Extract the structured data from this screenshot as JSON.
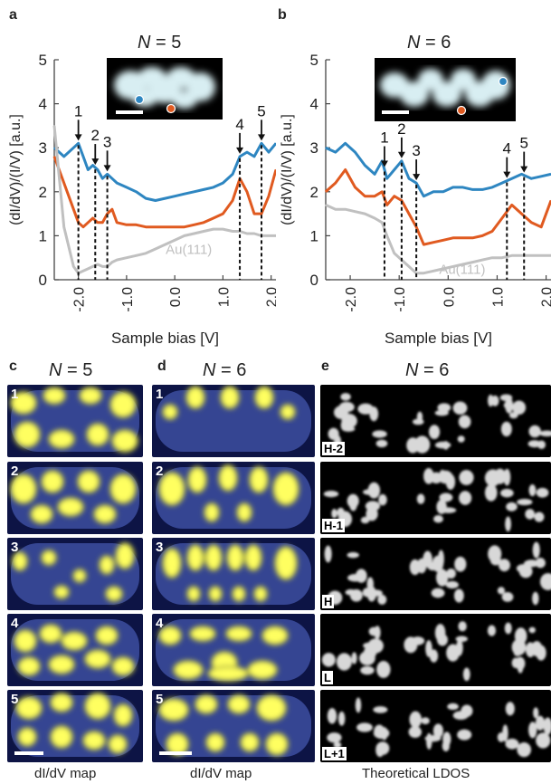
{
  "panels": {
    "a": {
      "letter": "a",
      "title_n": "N",
      "title_rest": " = 5"
    },
    "b": {
      "letter": "b",
      "title_n": "N",
      "title_rest": " = 6"
    },
    "c": {
      "letter": "c",
      "title_n": "N",
      "title_rest": " = 5",
      "caption": "dI/dV map"
    },
    "d": {
      "letter": "d",
      "title_n": "N",
      "title_rest": " = 6",
      "caption": "dI/dV map"
    },
    "e": {
      "letter": "e",
      "title_n": "N",
      "title_rest": " = 6",
      "caption": "Theoretical LDOS"
    }
  },
  "axes": {
    "ylabel": "(dI/dV)/(I/V) [a.u.]",
    "xlabel": "Sample bias [V]",
    "yticks": [
      "0",
      "1",
      "2",
      "3",
      "4",
      "5"
    ],
    "xticks": [
      "-2.0",
      "-1.0",
      "0.0",
      "1.0",
      "2.0"
    ],
    "au_label": "Au(111)"
  },
  "colors": {
    "blue": "#2e86c1",
    "orange": "#e05a20",
    "gray": "#c0c0c0"
  },
  "map_numbers": [
    "1",
    "2",
    "3",
    "4",
    "5"
  ],
  "orbital_tags": [
    "H-2",
    "H-1",
    "H",
    "L",
    "L+1"
  ],
  "chart_data": [
    {
      "type": "line",
      "title": "N = 5",
      "xlabel": "Sample bias [V]",
      "ylabel": "(dI/dV)/(I/V) [a.u.]",
      "xlim": [
        -2.5,
        2.1
      ],
      "ylim": [
        0,
        5
      ],
      "series": [
        {
          "color": "#2e86c1",
          "x": [
            -2.5,
            -2.3,
            -2.1,
            -2.0,
            -1.9,
            -1.8,
            -1.7,
            -1.6,
            -1.5,
            -1.4,
            -1.3,
            -1.2,
            -1.0,
            -0.8,
            -0.6,
            -0.4,
            -0.2,
            0.0,
            0.2,
            0.4,
            0.6,
            0.8,
            1.0,
            1.2,
            1.35,
            1.5,
            1.65,
            1.8,
            1.95,
            2.1
          ],
          "y": [
            3.0,
            2.8,
            3.0,
            3.1,
            2.8,
            2.5,
            2.6,
            2.5,
            2.3,
            2.4,
            2.3,
            2.2,
            2.1,
            2.0,
            1.85,
            1.8,
            1.85,
            1.9,
            1.95,
            2.0,
            2.05,
            2.1,
            2.2,
            2.4,
            2.8,
            2.9,
            2.8,
            3.1,
            2.9,
            3.1
          ]
        },
        {
          "color": "#e05a20",
          "x": [
            -2.5,
            -2.3,
            -2.1,
            -2.0,
            -1.9,
            -1.8,
            -1.7,
            -1.6,
            -1.5,
            -1.4,
            -1.3,
            -1.2,
            -1.0,
            -0.8,
            -0.6,
            -0.4,
            -0.2,
            0.0,
            0.2,
            0.4,
            0.6,
            0.8,
            1.0,
            1.2,
            1.35,
            1.5,
            1.65,
            1.8,
            1.95,
            2.1
          ],
          "y": [
            2.8,
            2.2,
            1.6,
            1.3,
            1.2,
            1.3,
            1.4,
            1.3,
            1.3,
            1.5,
            1.6,
            1.3,
            1.25,
            1.25,
            1.2,
            1.2,
            1.2,
            1.2,
            1.2,
            1.25,
            1.3,
            1.4,
            1.5,
            1.8,
            2.3,
            2.0,
            1.5,
            1.5,
            1.9,
            2.5
          ]
        },
        {
          "name": "Au(111)",
          "color": "#c0c0c0",
          "x": [
            -2.5,
            -2.3,
            -2.1,
            -2.0,
            -1.9,
            -1.8,
            -1.7,
            -1.6,
            -1.5,
            -1.4,
            -1.3,
            -1.2,
            -1.0,
            -0.8,
            -0.6,
            -0.4,
            -0.2,
            0.0,
            0.2,
            0.4,
            0.6,
            0.8,
            1.0,
            1.2,
            1.35,
            1.5,
            1.65,
            1.8,
            1.95,
            2.1
          ],
          "y": [
            3.5,
            1.2,
            0.3,
            0.15,
            0.2,
            0.25,
            0.3,
            0.35,
            0.3,
            0.3,
            0.4,
            0.45,
            0.5,
            0.55,
            0.6,
            0.7,
            0.8,
            0.9,
            1.0,
            1.05,
            1.1,
            1.15,
            1.15,
            1.1,
            1.1,
            1.05,
            1.05,
            1.0,
            1.0,
            1.0
          ]
        }
      ],
      "peaks": [
        {
          "label": "1",
          "x": -2.0
        },
        {
          "label": "2",
          "x": -1.65
        },
        {
          "label": "3",
          "x": -1.4
        },
        {
          "label": "4",
          "x": 1.35
        },
        {
          "label": "5",
          "x": 1.8
        }
      ]
    },
    {
      "type": "line",
      "title": "N = 6",
      "xlabel": "Sample bias [V]",
      "ylabel": "(dI/dV)/(I/V) [a.u.]",
      "xlim": [
        -2.5,
        2.1
      ],
      "ylim": [
        0,
        5
      ],
      "series": [
        {
          "color": "#2e86c1",
          "x": [
            -2.5,
            -2.3,
            -2.1,
            -1.9,
            -1.7,
            -1.5,
            -1.35,
            -1.25,
            -1.1,
            -0.95,
            -0.8,
            -0.65,
            -0.5,
            -0.3,
            -0.1,
            0.1,
            0.3,
            0.5,
            0.7,
            0.9,
            1.1,
            1.3,
            1.5,
            1.7,
            1.9,
            2.1
          ],
          "y": [
            3.0,
            2.9,
            3.1,
            2.9,
            2.6,
            2.4,
            2.7,
            2.3,
            2.5,
            2.7,
            2.3,
            2.2,
            1.9,
            2.0,
            2.0,
            2.1,
            2.1,
            2.05,
            2.05,
            2.1,
            2.2,
            2.3,
            2.4,
            2.3,
            2.35,
            2.4
          ]
        },
        {
          "color": "#e05a20",
          "x": [
            -2.5,
            -2.3,
            -2.1,
            -1.9,
            -1.7,
            -1.5,
            -1.35,
            -1.25,
            -1.1,
            -0.95,
            -0.8,
            -0.65,
            -0.5,
            -0.3,
            -0.1,
            0.1,
            0.3,
            0.5,
            0.7,
            0.9,
            1.1,
            1.3,
            1.5,
            1.7,
            1.9,
            2.1
          ],
          "y": [
            2.0,
            2.2,
            2.5,
            2.1,
            1.9,
            1.9,
            2.0,
            1.7,
            1.9,
            1.8,
            1.5,
            1.2,
            0.8,
            0.85,
            0.9,
            0.95,
            0.95,
            0.95,
            1.0,
            1.1,
            1.4,
            1.7,
            1.5,
            1.3,
            1.2,
            1.8
          ]
        },
        {
          "name": "Au(111)",
          "color": "#c0c0c0",
          "x": [
            -2.5,
            -2.3,
            -2.1,
            -1.9,
            -1.7,
            -1.5,
            -1.35,
            -1.25,
            -1.1,
            -0.95,
            -0.8,
            -0.65,
            -0.5,
            -0.3,
            -0.1,
            0.1,
            0.3,
            0.5,
            0.7,
            0.9,
            1.1,
            1.3,
            1.5,
            1.7,
            1.9,
            2.1
          ],
          "y": [
            1.7,
            1.6,
            1.6,
            1.55,
            1.5,
            1.4,
            1.3,
            1.0,
            0.6,
            0.45,
            0.3,
            0.15,
            0.15,
            0.2,
            0.25,
            0.3,
            0.35,
            0.4,
            0.45,
            0.5,
            0.5,
            0.55,
            0.55,
            0.55,
            0.55,
            0.55
          ]
        }
      ],
      "peaks": [
        {
          "label": "1",
          "x": -1.3
        },
        {
          "label": "2",
          "x": -0.95
        },
        {
          "label": "3",
          "x": -0.65
        },
        {
          "label": "4",
          "x": 1.2
        },
        {
          "label": "5",
          "x": 1.55
        }
      ]
    }
  ]
}
